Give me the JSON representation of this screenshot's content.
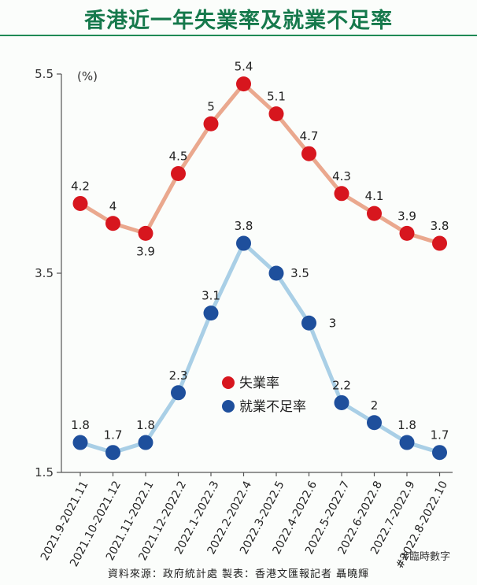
{
  "title": "香港近一年失業率及就業不足率",
  "footnote": "#臨時數字",
  "source": "資料來源：政府統計處 製表：香港文匯報記者 聶曉輝",
  "chart_data": {
    "type": "line",
    "categories": [
      "2021.9-2021.11",
      "2021.10-2021.12",
      "2021.11-2022.1",
      "2021.12-2022.2",
      "2022.1-2022.3",
      "2022.2-2022.4",
      "2022.3-2022.5",
      "2022.4-2022.6",
      "2022.5-2022.7",
      "2022.6-2022.8",
      "2022.7-2022.9",
      "#2022.8-2022.10"
    ],
    "series": [
      {
        "name": "失業率",
        "color": "#d7161e",
        "line_color": "#eaa88e",
        "values": [
          4.2,
          4.0,
          3.9,
          4.5,
          5.0,
          5.4,
          5.1,
          4.7,
          4.3,
          4.1,
          3.9,
          3.8
        ],
        "labels": [
          "4.2",
          "4",
          "3.9",
          "4.5",
          "5",
          "5.4",
          "5.1",
          "4.7",
          "4.3",
          "4.1",
          "3.9",
          "3.8"
        ]
      },
      {
        "name": "就業不足率",
        "color": "#1e4f9c",
        "line_color": "#a9cfe6",
        "values": [
          1.8,
          1.7,
          1.8,
          2.3,
          3.1,
          3.8,
          3.5,
          3.0,
          2.2,
          2.0,
          1.8,
          1.7
        ],
        "labels": [
          "1.8",
          "1.7",
          "1.8",
          "2.3",
          "3.1",
          "3.8",
          "3.5",
          "3",
          "2.2",
          "2",
          "1.8",
          "1.7"
        ]
      }
    ],
    "yunit": "(%)",
    "yticks": [
      "1.5",
      "3.5",
      "5.5"
    ],
    "ylim": [
      1.5,
      5.5
    ],
    "grid": false,
    "legend": "center"
  }
}
